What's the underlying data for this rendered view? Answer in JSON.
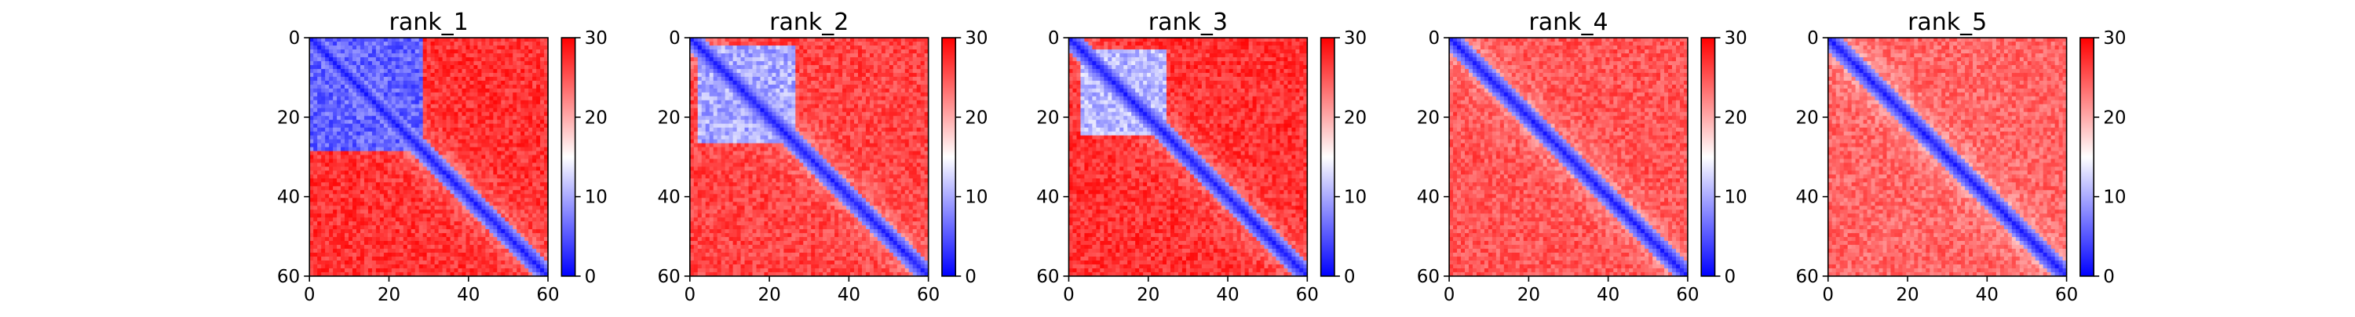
{
  "chart_data": [
    {
      "type": "heatmap",
      "title": "rank_1",
      "size": 61,
      "xlim": [
        0,
        60
      ],
      "ylim": [
        60,
        0
      ],
      "xticks": [
        0,
        20,
        40,
        60
      ],
      "yticks": [
        0,
        20,
        40,
        60
      ],
      "colorbar": {
        "range": [
          0,
          30
        ],
        "ticks": [
          0,
          10,
          20,
          30
        ],
        "colors": [
          "#0000ff",
          "#ffffff",
          "#ff0000"
        ]
      },
      "diagonal_band_width": 3,
      "blocks": [
        {
          "start": 0,
          "end": 28,
          "value": 6
        }
      ],
      "background_value": 27
    },
    {
      "type": "heatmap",
      "title": "rank_2",
      "size": 61,
      "xlim": [
        0,
        60
      ],
      "ylim": [
        60,
        0
      ],
      "xticks": [
        0,
        20,
        40,
        60
      ],
      "yticks": [
        0,
        20,
        40,
        60
      ],
      "colorbar": {
        "range": [
          0,
          30
        ],
        "ticks": [
          0,
          10,
          20,
          30
        ],
        "colors": [
          "#0000ff",
          "#ffffff",
          "#ff0000"
        ]
      },
      "diagonal_band_width": 3,
      "blocks": [
        {
          "start": 2,
          "end": 26,
          "value": 10
        }
      ],
      "background_value": 26
    },
    {
      "type": "heatmap",
      "title": "rank_3",
      "size": 61,
      "xlim": [
        0,
        60
      ],
      "ylim": [
        60,
        0
      ],
      "xticks": [
        0,
        20,
        40,
        60
      ],
      "yticks": [
        0,
        20,
        40,
        60
      ],
      "colorbar": {
        "range": [
          0,
          30
        ],
        "ticks": [
          0,
          10,
          20,
          30
        ],
        "colors": [
          "#0000ff",
          "#ffffff",
          "#ff0000"
        ]
      },
      "diagonal_band_width": 3,
      "blocks": [
        {
          "start": 3,
          "end": 24,
          "value": 11
        }
      ],
      "background_value": 27
    },
    {
      "type": "heatmap",
      "title": "rank_4",
      "size": 61,
      "xlim": [
        0,
        60
      ],
      "ylim": [
        60,
        0
      ],
      "xticks": [
        0,
        20,
        40,
        60
      ],
      "yticks": [
        0,
        20,
        40,
        60
      ],
      "colorbar": {
        "range": [
          0,
          30
        ],
        "ticks": [
          0,
          10,
          20,
          30
        ],
        "colors": [
          "#0000ff",
          "#ffffff",
          "#ff0000"
        ]
      },
      "diagonal_band_width": 3,
      "blocks": [],
      "background_value": 25
    },
    {
      "type": "heatmap",
      "title": "rank_5",
      "size": 61,
      "xlim": [
        0,
        60
      ],
      "ylim": [
        60,
        0
      ],
      "xticks": [
        0,
        20,
        40,
        60
      ],
      "yticks": [
        0,
        20,
        40,
        60
      ],
      "colorbar": {
        "range": [
          0,
          30
        ],
        "ticks": [
          0,
          10,
          20,
          30
        ],
        "colors": [
          "#0000ff",
          "#ffffff",
          "#ff0000"
        ]
      },
      "diagonal_band_width": 3,
      "blocks": [],
      "background_value": 24
    }
  ]
}
